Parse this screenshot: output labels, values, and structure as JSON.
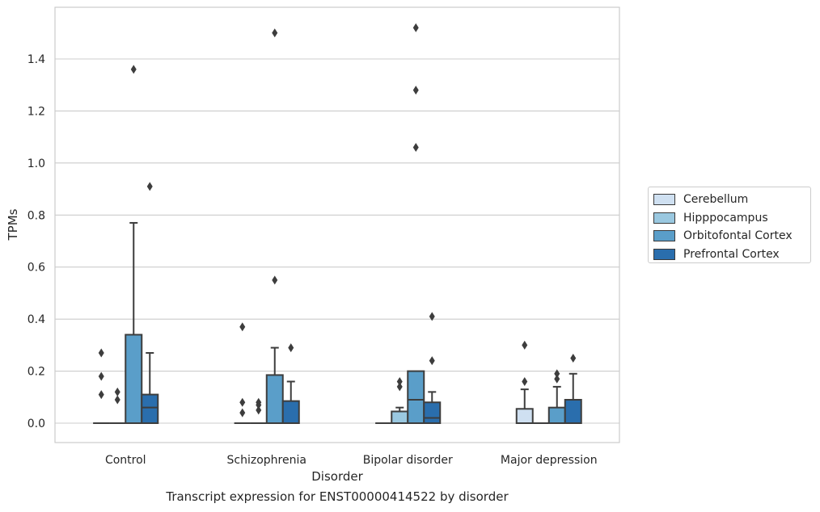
{
  "caption": "Transcript expression for ENST00000414522 by disorder",
  "chart_data": {
    "type": "boxplot",
    "xlabel": "Disorder",
    "ylabel": "TPMs",
    "ylim": [
      -0.07,
      1.6
    ],
    "yticks": [
      0.0,
      0.2,
      0.4,
      0.6,
      0.8,
      1.0,
      1.2,
      1.4
    ],
    "ytick_labels": [
      "0.0",
      "0.2",
      "0.4",
      "0.6",
      "0.8",
      "1.0",
      "1.2",
      "1.4"
    ],
    "grid": true,
    "legend_position": "right",
    "categories": [
      "Control",
      "Schizophrenia",
      "Bipolar disorder",
      "Major depression"
    ],
    "series": [
      {
        "name": "Cerebellum",
        "color": "#cfe0f1",
        "boxes": [
          {
            "q1": 0,
            "median": 0,
            "q3": 0,
            "whislo": 0,
            "whishi": 0,
            "fliers": [
              0.27,
              0.18,
              0.11
            ]
          },
          {
            "q1": 0,
            "median": 0,
            "q3": 0,
            "whislo": 0,
            "whishi": 0,
            "fliers": [
              0.37,
              0.08,
              0.04
            ]
          },
          {
            "q1": 0,
            "median": 0,
            "q3": 0,
            "whislo": 0,
            "whishi": 0,
            "fliers": []
          },
          {
            "q1": 0,
            "median": 0,
            "q3": 0.055,
            "whislo": 0,
            "whishi": 0.13,
            "fliers": [
              0.3,
              0.16
            ]
          }
        ]
      },
      {
        "name": "Hipppocampus",
        "color": "#9ac8e0",
        "boxes": [
          {
            "q1": 0,
            "median": 0,
            "q3": 0,
            "whislo": 0,
            "whishi": 0,
            "fliers": [
              0.12,
              0.09
            ]
          },
          {
            "q1": 0,
            "median": 0,
            "q3": 0,
            "whislo": 0,
            "whishi": 0,
            "fliers": [
              0.08,
              0.07,
              0.05
            ]
          },
          {
            "q1": 0,
            "median": 0,
            "q3": 0.045,
            "whislo": 0,
            "whishi": 0.06,
            "fliers": [
              0.16,
              0.14
            ]
          },
          {
            "q1": 0,
            "median": 0,
            "q3": 0,
            "whislo": 0,
            "whishi": 0,
            "fliers": []
          }
        ]
      },
      {
        "name": "Orbitofontal Cortex",
        "color": "#5a9ec9",
        "boxes": [
          {
            "q1": 0,
            "median": 0,
            "q3": 0.34,
            "whislo": 0,
            "whishi": 0.77,
            "fliers": [
              1.36
            ]
          },
          {
            "q1": 0,
            "median": 0,
            "q3": 0.185,
            "whislo": 0,
            "whishi": 0.29,
            "fliers": [
              1.5,
              0.55
            ]
          },
          {
            "q1": 0,
            "median": 0.09,
            "q3": 0.2,
            "whislo": 0,
            "whishi": 0.2,
            "fliers": [
              1.52,
              1.28,
              1.06
            ]
          },
          {
            "q1": 0,
            "median": 0,
            "q3": 0.06,
            "whislo": 0,
            "whishi": 0.14,
            "fliers": [
              0.19,
              0.17
            ]
          }
        ]
      },
      {
        "name": "Prefrontal Cortex",
        "color": "#2a6ead",
        "boxes": [
          {
            "q1": 0,
            "median": 0.06,
            "q3": 0.11,
            "whislo": 0,
            "whishi": 0.27,
            "fliers": [
              0.91
            ]
          },
          {
            "q1": 0,
            "median": 0,
            "q3": 0.085,
            "whislo": 0,
            "whishi": 0.16,
            "fliers": [
              0.29
            ]
          },
          {
            "q1": 0,
            "median": 0.02,
            "q3": 0.08,
            "whislo": 0,
            "whishi": 0.12,
            "fliers": [
              0.41,
              0.24
            ]
          },
          {
            "q1": 0,
            "median": 0,
            "q3": 0.09,
            "whislo": 0,
            "whishi": 0.19,
            "fliers": [
              0.25
            ]
          }
        ]
      }
    ]
  }
}
